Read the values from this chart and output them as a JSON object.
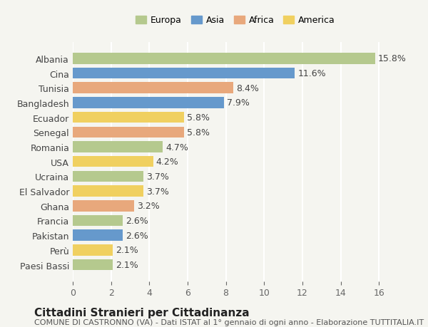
{
  "title": "Cittadini Stranieri per Cittadinanza",
  "subtitle": "COMUNE DI CASTRONNO (VA) - Dati ISTAT al 1° gennaio di ogni anno - Elaborazione TUTTITALIA.IT",
  "categories": [
    "Albania",
    "Cina",
    "Tunisia",
    "Bangladesh",
    "Ecuador",
    "Senegal",
    "Romania",
    "USA",
    "Ucraina",
    "El Salvador",
    "Ghana",
    "Francia",
    "Pakistan",
    "Perù",
    "Paesi Bassi"
  ],
  "values": [
    15.8,
    11.6,
    8.4,
    7.9,
    5.8,
    5.8,
    4.7,
    4.2,
    3.7,
    3.7,
    3.2,
    2.6,
    2.6,
    2.1,
    2.1
  ],
  "continents": [
    "Europa",
    "Asia",
    "Africa",
    "Asia",
    "America",
    "Africa",
    "Europa",
    "America",
    "Europa",
    "America",
    "Africa",
    "Europa",
    "Asia",
    "America",
    "Europa"
  ],
  "continent_colors": {
    "Europa": "#b5c98e",
    "Asia": "#6699cc",
    "Africa": "#e8a87c",
    "America": "#f0d060"
  },
  "legend_order": [
    "Europa",
    "Asia",
    "Africa",
    "America"
  ],
  "xlim": [
    0,
    17
  ],
  "xticks": [
    0,
    2,
    4,
    6,
    8,
    10,
    12,
    14,
    16
  ],
  "background_color": "#f5f5f0",
  "grid_color": "#ffffff",
  "bar_height": 0.75,
  "label_fontsize": 9,
  "title_fontsize": 11,
  "subtitle_fontsize": 8
}
